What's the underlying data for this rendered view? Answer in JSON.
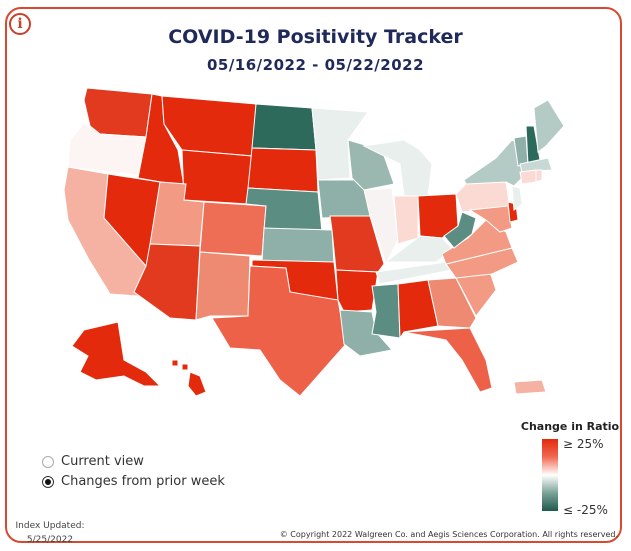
{
  "header": {
    "title": "COVID-19 Positivity Tracker",
    "date_range": "05/16/2022 - 05/22/2022",
    "info_icon": "info-circle-icon"
  },
  "legend": {
    "title": "Change in Ratio",
    "max_label": "≥ 25%",
    "min_label": "≤ -25%",
    "colors": {
      "high": "#e42a0c",
      "mid": "#ffffff",
      "low": "#1f5a4d"
    }
  },
  "view_options": [
    {
      "label": "Current view",
      "selected": false
    },
    {
      "label": "Changes from prior week",
      "selected": true
    }
  ],
  "footer": {
    "index_updated_label": "Index Updated:",
    "index_updated_date": "5/25/2022",
    "copyright": "© Copyright 2022 Walgreen Co. and Aegis Sciences Corporation. All rights reserved."
  },
  "map_colors": {
    "WA": "#e23a1e",
    "OR": "#fdf5f3",
    "CA": "#f5b2a3",
    "NV": "#e42a0c",
    "ID": "#e42a0c",
    "MT": "#e42a0c",
    "WY": "#e42a0c",
    "UT": "#f29a83",
    "AZ": "#e23a1e",
    "CO": "#ee6d55",
    "NM": "#ef8a72",
    "ND": "#2d6a5c",
    "SD": "#e42a0c",
    "NE": "#5b8d82",
    "KS": "#8eb0a8",
    "OK": "#e42a0c",
    "TX": "#ee6149",
    "MN": "#e9efed",
    "IA": "#8eb0a8",
    "MO": "#e23a1e",
    "AR": "#e42a0c",
    "LA": "#8eb0a8",
    "WI": "#9ab8b0",
    "IL": "#f7f3f2",
    "MI": "#e9efed",
    "IN": "#fadad2",
    "OH": "#e42a0c",
    "KY": "#e9efed",
    "TN": "#e9efed",
    "MS": "#5b8d82",
    "AL": "#e42a0c",
    "GA": "#ef8a72",
    "FL": "#ee6149",
    "SC": "#f29a83",
    "NC": "#f29a83",
    "VA": "#f29a83",
    "WV": "#5b8d82",
    "PA": "#fadad2",
    "NY": "#b4cac4",
    "VT": "#8eb0a8",
    "NH": "#2d6a5c",
    "ME": "#b4cac4",
    "MA": "#c8d8d4",
    "CT": "#fadad2",
    "RI": "#fadad2",
    "NJ": "#e9efed",
    "DE": "#e42a0c",
    "MD": "#f29a83",
    "AK": "#e42a0c",
    "HI": "#e42a0c",
    "PR": "#f5b2a3"
  }
}
